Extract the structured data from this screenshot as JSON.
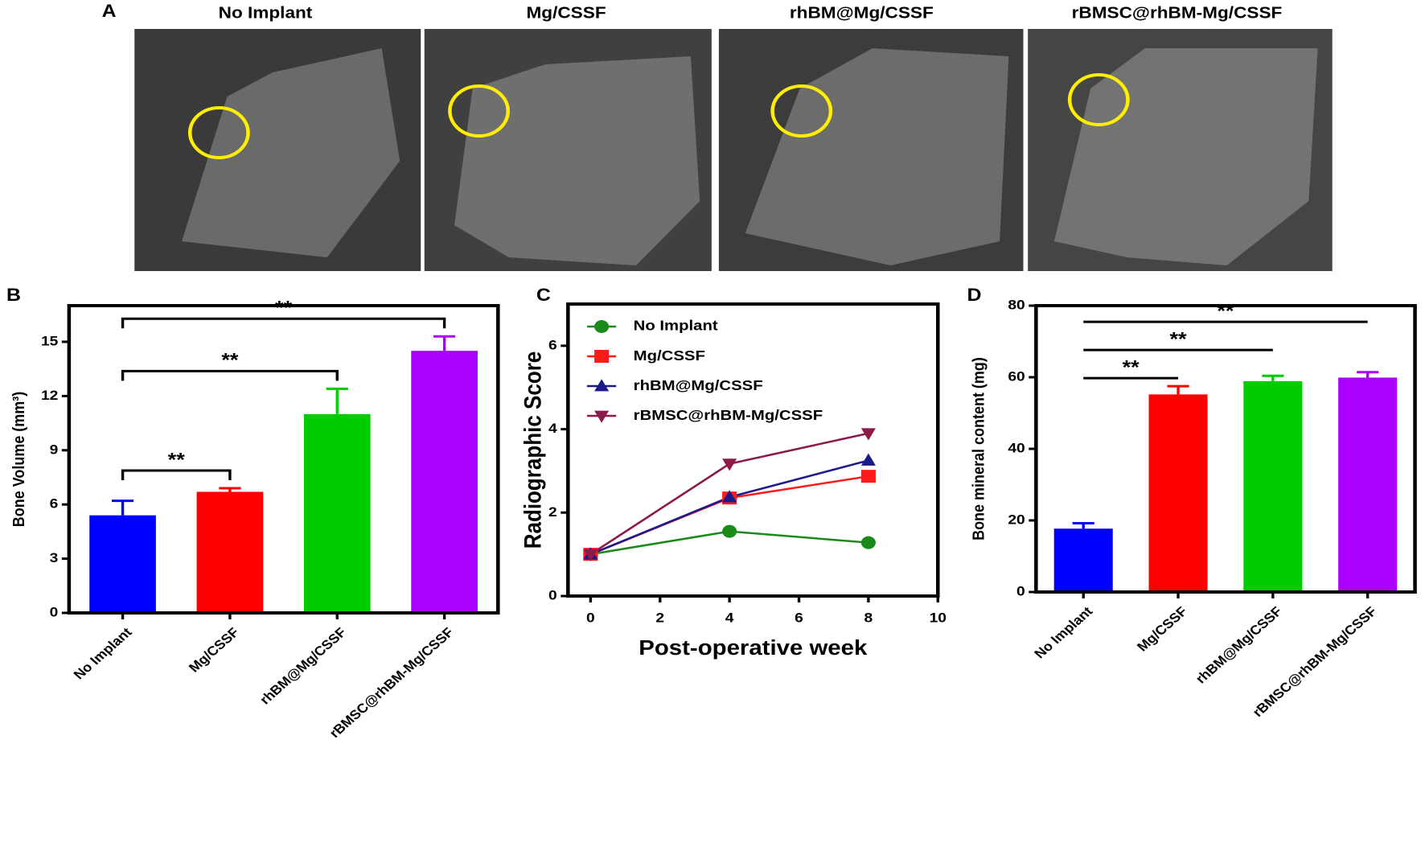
{
  "panel_labels": [
    "A",
    "B",
    "C",
    "D"
  ],
  "images": {
    "titles": [
      "No Implant",
      "Mg/CSSF",
      "rhBM@Mg/CSSF",
      "rBMSC@rhBM-Mg/CSSF"
    ]
  },
  "chart_data": [
    {
      "type": "bar",
      "categories": [
        "No Implant",
        "Mg/CSSF",
        "rhBM@Mg/CSSF",
        "rBMSC@rhBM-Mg/CSSF"
      ],
      "values": [
        5.4,
        6.7,
        11.0,
        14.5
      ],
      "errors": [
        0.8,
        0.2,
        1.4,
        0.8
      ],
      "colors": [
        "#0000ff",
        "#ff0000",
        "#00cc00",
        "#aa00ff"
      ],
      "ylabel": "Bone Volume (mm³)",
      "ylim": [
        0,
        17
      ],
      "yticks": [
        0,
        3,
        6,
        9,
        12,
        15
      ],
      "significance": [
        {
          "pair": [
            0,
            1
          ],
          "label": "**"
        },
        {
          "pair": [
            0,
            2
          ],
          "label": "**"
        },
        {
          "pair": [
            0,
            3
          ],
          "label": "**"
        }
      ]
    },
    {
      "type": "line",
      "x": [
        0,
        4,
        8
      ],
      "series": [
        {
          "name": "No Implant",
          "color": "#1a8a1a",
          "marker": "circle",
          "values": [
            1,
            1.55,
            1.28
          ]
        },
        {
          "name": "Mg/CSSF",
          "color": "#ff1a1a",
          "marker": "square",
          "values": [
            1,
            2.35,
            2.87
          ]
        },
        {
          "name": "rhBM@Mg/CSSF",
          "color": "#1a1a8a",
          "marker": "triangle",
          "values": [
            1,
            2.37,
            3.25
          ]
        },
        {
          "name": "rBMSC@rhBM-Mg/CSSF",
          "color": "#8b1a4a",
          "marker": "triangle-down",
          "values": [
            1,
            3.17,
            3.9
          ]
        }
      ],
      "xlabel": "Post-operative week",
      "ylabel": "Radiographic Score",
      "xlim": [
        -0.65,
        10
      ],
      "xticks": [
        0,
        2,
        4,
        6,
        8,
        10
      ],
      "ylim": [
        0,
        7
      ],
      "yticks": [
        0,
        2,
        4,
        6
      ],
      "legend": "upper-left"
    },
    {
      "type": "bar",
      "categories": [
        "No Implant",
        "Mg/CSSF",
        "rhBM@Mg/CSSF",
        "rBMSC@rhBM-Mg/CSSF"
      ],
      "values": [
        17.7,
        55.2,
        58.9,
        59.9
      ],
      "errors": [
        1.5,
        2.3,
        1.5,
        1.5
      ],
      "colors": [
        "#0000ff",
        "#ff0000",
        "#00cc00",
        "#aa00ff"
      ],
      "ylabel": "Bone mineral content (mg)",
      "ylim": [
        0,
        80
      ],
      "yticks": [
        0,
        20,
        40,
        60,
        80
      ],
      "significance": [
        {
          "pair": [
            0,
            1
          ],
          "label": "**"
        },
        {
          "pair": [
            0,
            2
          ],
          "label": "**"
        },
        {
          "pair": [
            0,
            3
          ],
          "label": "**"
        }
      ]
    }
  ]
}
